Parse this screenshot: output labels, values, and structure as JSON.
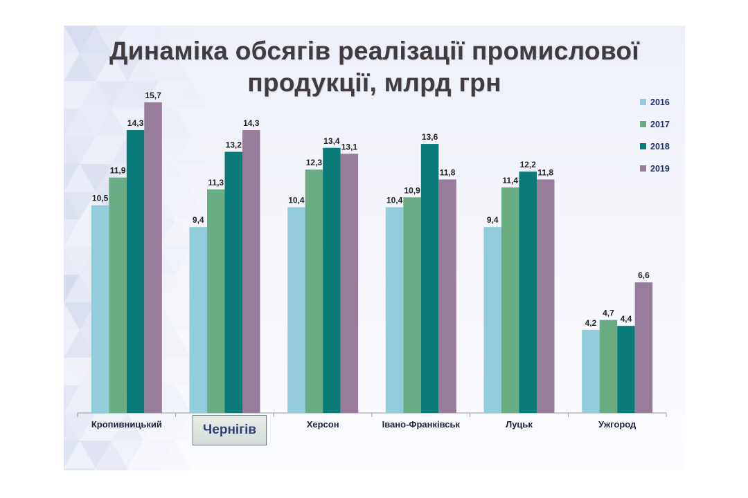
{
  "title": {
    "line1": "Динаміка обсягів реалізації промислової",
    "line2": "продукції, млрд грн"
  },
  "chart_data": {
    "type": "bar",
    "categories": [
      "Кропивницький",
      "Чернігів",
      "Херсон",
      "Івано-Франківськ",
      "Луцьк",
      "Ужгород"
    ],
    "highlighted_category": "Чернігів",
    "series": [
      {
        "name": "2016",
        "color": "#93cddb",
        "values": [
          10.5,
          9.4,
          10.4,
          10.4,
          9.4,
          4.2
        ],
        "labels": [
          "10,5",
          "9,4",
          "10,4",
          "10,4",
          "9,4",
          "4,2"
        ]
      },
      {
        "name": "2017",
        "color": "#6aad85",
        "values": [
          11.9,
          11.3,
          12.3,
          10.9,
          11.4,
          4.7
        ],
        "labels": [
          "11,9",
          "11,3",
          "12,3",
          "10,9",
          "11,4",
          "4,7"
        ]
      },
      {
        "name": "2018",
        "color": "#0a7a78",
        "values": [
          14.3,
          13.2,
          13.4,
          13.6,
          12.2,
          4.4
        ],
        "labels": [
          "14,3",
          "13,2",
          "13,4",
          "13,6",
          "12,2",
          "4,4"
        ]
      },
      {
        "name": "2019",
        "color": "#977d9b",
        "values": [
          15.7,
          14.3,
          13.1,
          11.8,
          11.8,
          6.6
        ],
        "labels": [
          "15,7",
          "14,3",
          "13,1",
          "11,8",
          "11,8",
          "6,6"
        ]
      }
    ],
    "ylim": [
      0,
      17.6
    ],
    "grid": false,
    "legend": "top-right",
    "xlabel": "",
    "ylabel": ""
  }
}
